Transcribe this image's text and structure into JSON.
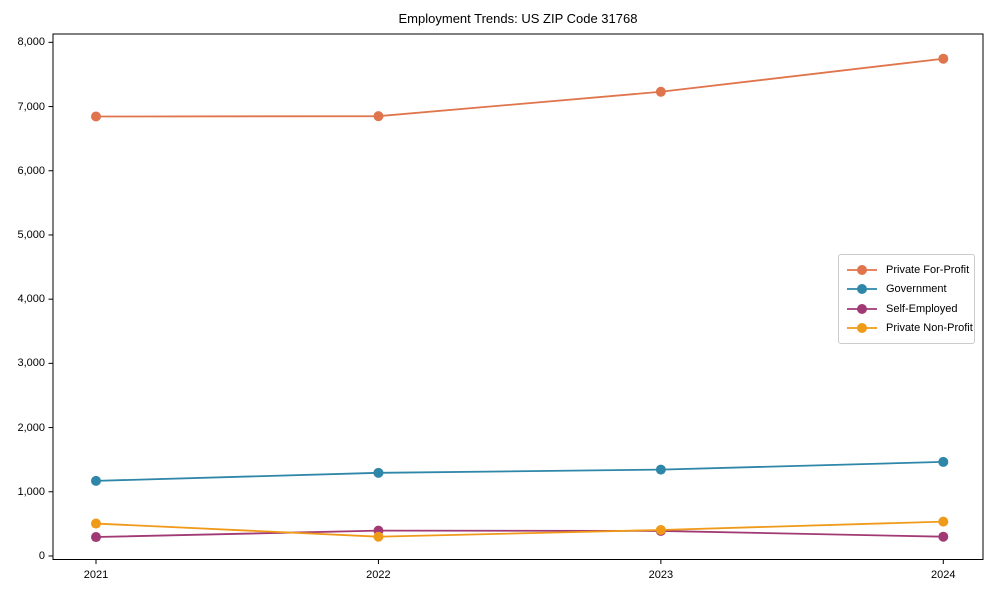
{
  "title": "Employment Trends: US ZIP Code 31768",
  "chart_data": {
    "type": "line",
    "title": "Employment Trends: US ZIP Code 31768",
    "x": [
      "2021",
      "2022",
      "2023",
      "2024"
    ],
    "series": [
      {
        "name": "Private For-Profit",
        "color": "#E0744C",
        "values": [
          6845,
          6850,
          7230,
          7745
        ]
      },
      {
        "name": "Government",
        "color": "#2E86A8",
        "values": [
          1170,
          1295,
          1345,
          1465
        ]
      },
      {
        "name": "Self-Employed",
        "color": "#A13A74",
        "values": [
          295,
          395,
          390,
          300
        ]
      },
      {
        "name": "Private Non-Profit",
        "color": "#F09A1A",
        "values": [
          505,
          300,
          405,
          535
        ]
      }
    ],
    "xlabel": "",
    "ylabel": "",
    "ylim": [
      0,
      8000
    ],
    "ytick_step": 1000,
    "ytick_labels": [
      "0",
      "1,000",
      "2,000",
      "3,000",
      "4,000",
      "5,000",
      "6,000",
      "7,000",
      "8,000"
    ],
    "grid": false,
    "legend_position": "center-right",
    "marker": "circle",
    "axis_color": "#000000"
  }
}
